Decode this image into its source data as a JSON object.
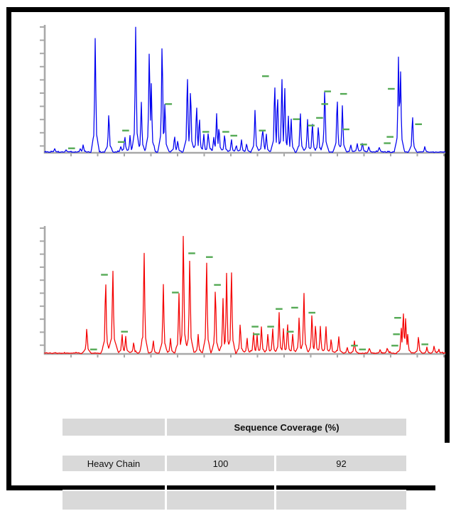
{
  "table": {
    "merged_header": "Sequence Coverage (%)",
    "rows": [
      {
        "label": "Heavy Chain",
        "values": [
          "100",
          "92"
        ]
      }
    ]
  },
  "colors": {
    "trace_blue": "#0000f0",
    "trace_red": "#f40000",
    "marker_green": "#55aa55",
    "axis_gray": "#a8a8a8",
    "table_gray": "#d9d9d9",
    "frame_black": "#000000"
  },
  "chart_data": [
    {
      "type": "line",
      "name": "top-chromatogram-blue",
      "description": "Base peak chromatogram, blue trace with green peptide-match dash markers; axes unlabeled",
      "color": "#0000f0",
      "marker_color": "#55aa55",
      "x_units": "relative retention position (0-100, no tick labels shown)",
      "y_units": "relative intensity (0-1, no tick labels shown)",
      "xlim": [
        0,
        100
      ],
      "ylim": [
        0,
        1
      ],
      "grid": false,
      "legend": "none",
      "x_tick_count": 15,
      "y_tick_count": 10,
      "peaks": [
        [
          2.5,
          0.03
        ],
        [
          5.3,
          0.02
        ],
        [
          8.9,
          0.03
        ],
        [
          9.6,
          0.06
        ],
        [
          12.6,
          0.93
        ],
        [
          16.0,
          0.33
        ],
        [
          19.0,
          0.05
        ],
        [
          20.0,
          0.13
        ],
        [
          21.3,
          0.14
        ],
        [
          22.7,
          1.0
        ],
        [
          24.1,
          0.41
        ],
        [
          26.1,
          0.87
        ],
        [
          26.6,
          0.55
        ],
        [
          29.3,
          0.94
        ],
        [
          30.0,
          0.42
        ],
        [
          32.4,
          0.14
        ],
        [
          33.2,
          0.1
        ],
        [
          35.6,
          0.65
        ],
        [
          36.4,
          0.55
        ],
        [
          37.9,
          0.4
        ],
        [
          38.6,
          0.3
        ],
        [
          39.7,
          0.15
        ],
        [
          40.8,
          0.15,
          2.5,
          9
        ],
        [
          42.2,
          0.12
        ],
        [
          42.9,
          0.31
        ],
        [
          43.5,
          0.22
        ],
        [
          44.9,
          0.15
        ],
        [
          46.6,
          0.11
        ],
        [
          47.8,
          0.06
        ],
        [
          49.1,
          0.1
        ],
        [
          50.4,
          0.07
        ],
        [
          52.5,
          0.35
        ],
        [
          54.4,
          0.18,
          3,
          9
        ],
        [
          55.3,
          0.15
        ],
        [
          57.4,
          0.58
        ],
        [
          58.1,
          0.5
        ],
        [
          59.2,
          0.61
        ],
        [
          59.9,
          0.55
        ],
        [
          60.8,
          0.3
        ],
        [
          61.5,
          0.28
        ],
        [
          63.8,
          0.33
        ],
        [
          65.6,
          0.26
        ],
        [
          66.8,
          0.25
        ],
        [
          68.3,
          0.22
        ],
        [
          69.9,
          0.54
        ],
        [
          73.0,
          0.46
        ],
        [
          74.3,
          0.38
        ],
        [
          76.4,
          0.06
        ],
        [
          78.0,
          0.07
        ],
        [
          79.3,
          0.08
        ],
        [
          80.9,
          0.05
        ],
        [
          83.5,
          0.04
        ],
        [
          88.3,
          0.76
        ],
        [
          88.8,
          0.7
        ],
        [
          91.8,
          0.31
        ],
        [
          94.9,
          0.04
        ]
      ],
      "markers": [
        [
          6.7,
          0.03
        ],
        [
          19.1,
          0.08
        ],
        [
          20.2,
          0.17
        ],
        [
          30.9,
          0.38
        ],
        [
          40.2,
          0.16
        ],
        [
          45.2,
          0.16
        ],
        [
          47.2,
          0.13
        ],
        [
          54.3,
          0.17
        ],
        [
          55.1,
          0.6
        ],
        [
          62.8,
          0.26
        ],
        [
          66.5,
          0.21
        ],
        [
          68.6,
          0.27
        ],
        [
          69.9,
          0.38
        ],
        [
          70.6,
          0.48
        ],
        [
          74.6,
          0.46
        ],
        [
          75.2,
          0.18
        ],
        [
          79.6,
          0.06
        ],
        [
          85.5,
          0.07
        ],
        [
          86.2,
          0.12
        ],
        [
          86.5,
          0.5
        ],
        [
          93.3,
          0.22
        ]
      ]
    },
    {
      "type": "line",
      "name": "bottom-chromatogram-red",
      "description": "Base peak chromatogram, red trace with green peptide-match dash markers; axes unlabeled",
      "color": "#f40000",
      "marker_color": "#55aa55",
      "x_units": "relative retention position (0-100, no tick labels shown)",
      "y_units": "relative intensity (0-1, no tick labels shown)",
      "xlim": [
        0,
        100
      ],
      "ylim": [
        0,
        1
      ],
      "grid": false,
      "legend": "none",
      "x_tick_count": 15,
      "y_tick_count": 10,
      "peaks": [
        [
          10.5,
          0.21
        ],
        [
          15.2,
          0.63
        ],
        [
          17.0,
          0.69,
          2,
          8
        ],
        [
          19.3,
          0.16
        ],
        [
          20.2,
          0.14
        ],
        [
          22.2,
          0.09
        ],
        [
          24.3,
          0.12
        ],
        [
          24.8,
          0.85
        ],
        [
          27.1,
          0.1
        ],
        [
          29.3,
          0.06
        ],
        [
          29.6,
          0.56
        ],
        [
          31.4,
          0.12
        ],
        [
          33.5,
          0.49
        ],
        [
          34.6,
          1.0
        ],
        [
          36.2,
          0.8
        ],
        [
          38.3,
          0.15
        ],
        [
          40.4,
          0.77
        ],
        [
          42.6,
          0.56
        ],
        [
          44.5,
          0.44
        ],
        [
          45.4,
          0.65
        ],
        [
          46.6,
          0.7
        ],
        [
          48.8,
          0.25
        ],
        [
          50.5,
          0.12
        ],
        [
          52.1,
          0.18
        ],
        [
          53.0,
          0.15
        ],
        [
          54.1,
          0.22
        ],
        [
          55.7,
          0.16
        ],
        [
          56.9,
          0.2
        ],
        [
          58.5,
          0.33
        ],
        [
          59.6,
          0.2
        ],
        [
          60.6,
          0.25
        ],
        [
          61.9,
          0.16
        ],
        [
          63.5,
          0.3
        ],
        [
          64.7,
          0.5
        ],
        [
          66.7,
          0.33
        ],
        [
          67.6,
          0.25
        ],
        [
          68.8,
          0.22
        ],
        [
          70.2,
          0.22
        ],
        [
          71.5,
          0.12
        ],
        [
          73.4,
          0.13
        ],
        [
          75.5,
          0.05
        ],
        [
          77.3,
          0.1
        ],
        [
          81.0,
          0.04
        ],
        [
          83.7,
          0.03
        ],
        [
          85.5,
          0.04
        ],
        [
          89.0,
          0.2
        ],
        [
          89.5,
          0.35
        ],
        [
          90.1,
          0.3
        ],
        [
          90.6,
          0.15
        ],
        [
          93.3,
          0.14
        ],
        [
          95.4,
          0.05
        ],
        [
          97.2,
          0.06
        ],
        [
          98.4,
          0.03
        ]
      ],
      "markers": [
        [
          12.2,
          0.03
        ],
        [
          14.9,
          0.62
        ],
        [
          19.9,
          0.17
        ],
        [
          32.6,
          0.48
        ],
        [
          36.7,
          0.79
        ],
        [
          41.1,
          0.76
        ],
        [
          43.1,
          0.54
        ],
        [
          52.5,
          0.21
        ],
        [
          52.8,
          0.15
        ],
        [
          56.4,
          0.21
        ],
        [
          58.5,
          0.35
        ],
        [
          61.3,
          0.17
        ],
        [
          62.4,
          0.36
        ],
        [
          66.7,
          0.32
        ],
        [
          77.3,
          0.06
        ],
        [
          79.3,
          0.03
        ],
        [
          87.4,
          0.06
        ],
        [
          87.8,
          0.15
        ],
        [
          88.1,
          0.28
        ],
        [
          94.9,
          0.07
        ]
      ]
    }
  ]
}
